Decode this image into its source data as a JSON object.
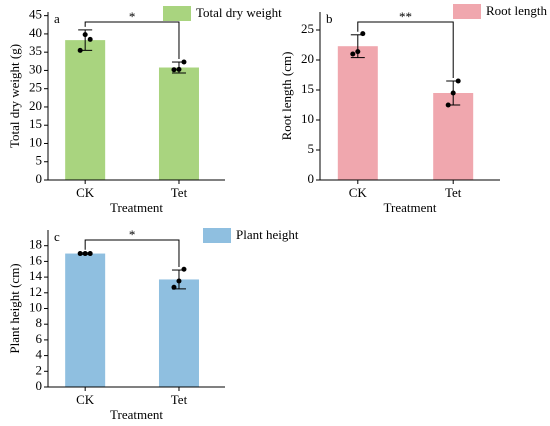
{
  "chart_data": [
    {
      "type": "bar",
      "label": "a",
      "legend": "Total dry weight",
      "color": "#a9d47f",
      "categories": [
        "CK",
        "Tet"
      ],
      "values": [
        38.3,
        30.8
      ],
      "errors": [
        2.8,
        1.5
      ],
      "points": [
        [
          35.5,
          39.8,
          38.5
        ],
        [
          30.2,
          30.3,
          32.3
        ]
      ],
      "significance": "*",
      "xlabel": "Treatment",
      "ylabel": "Total dry weight (g)",
      "ylim": [
        0,
        46
      ],
      "yticks": [
        0,
        5,
        10,
        15,
        20,
        25,
        30,
        35,
        40,
        45
      ]
    },
    {
      "type": "bar",
      "label": "b",
      "legend": "Root length",
      "color": "#f0a7ae",
      "categories": [
        "CK",
        "Tet"
      ],
      "values": [
        22.3,
        14.5
      ],
      "errors": [
        1.9,
        2.0
      ],
      "points": [
        [
          21.0,
          21.4,
          24.4
        ],
        [
          12.5,
          14.5,
          16.5
        ]
      ],
      "significance": "**",
      "xlabel": "Treatment",
      "ylabel": "Root length (cm)",
      "ylim": [
        0,
        28
      ],
      "yticks": [
        0,
        5,
        10,
        15,
        20,
        25
      ]
    },
    {
      "type": "bar",
      "label": "c",
      "legend": "Plant height",
      "color": "#8fbfe0",
      "categories": [
        "CK",
        "Tet"
      ],
      "values": [
        17.0,
        13.7
      ],
      "errors": [
        0.1,
        1.2
      ],
      "points": [
        [
          17.0,
          17.0,
          17.0
        ],
        [
          12.7,
          13.5,
          15.0
        ]
      ],
      "significance": "*",
      "xlabel": "Treatment",
      "ylabel": "Plant height (cm)",
      "ylim": [
        0,
        20
      ],
      "yticks": [
        0,
        2,
        4,
        6,
        8,
        10,
        12,
        14,
        16,
        18
      ]
    }
  ]
}
